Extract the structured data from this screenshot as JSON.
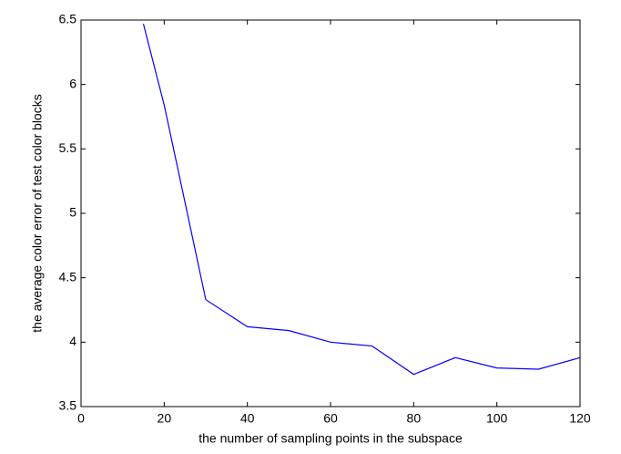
{
  "chart_data": {
    "type": "line",
    "xlabel": "the number of sampling points in the subspace",
    "ylabel": "the average color error of test color blocks",
    "x": [
      15,
      20,
      30,
      40,
      50,
      60,
      70,
      80,
      90,
      100,
      110,
      120
    ],
    "series": [
      {
        "color": "#0000ff",
        "values": [
          6.47,
          5.84,
          4.33,
          4.12,
          4.09,
          4.0,
          3.97,
          3.75,
          3.88,
          3.8,
          3.79,
          3.88
        ]
      }
    ],
    "xlim": [
      0,
      120
    ],
    "xticks": [
      0,
      20,
      40,
      60,
      80,
      100,
      120
    ],
    "ylim": [
      3.5,
      6.5
    ],
    "yticks": [
      3.5,
      4,
      4.5,
      5,
      5.5,
      6,
      6.5
    ],
    "grid": false
  }
}
